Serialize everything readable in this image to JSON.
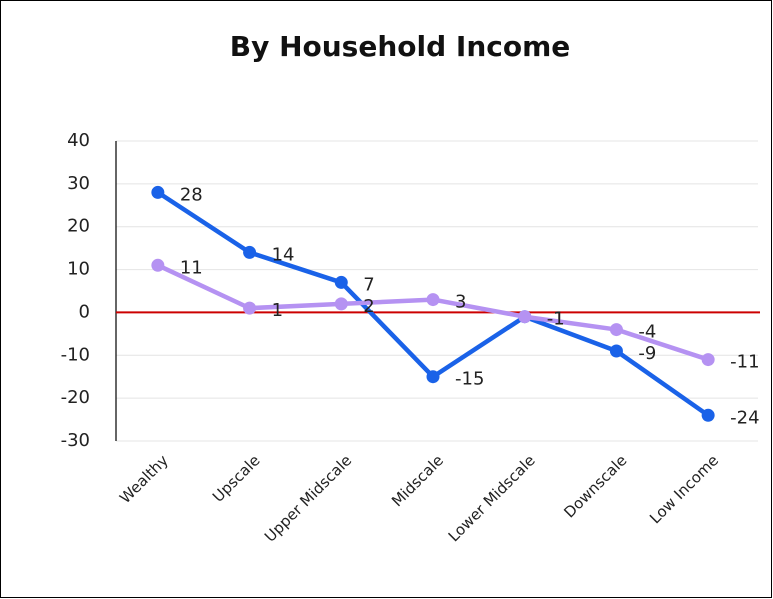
{
  "chart_data": {
    "type": "line",
    "title": "By Household Income",
    "categories": [
      "Wealthy",
      "Upscale",
      "Upper Midscale",
      "Midscale",
      "Lower Midscale",
      "Downscale",
      "Low Income"
    ],
    "series": [
      {
        "color": "#1a62e8",
        "values": [
          28,
          14,
          7,
          -15,
          -1,
          -9,
          -24
        ]
      },
      {
        "color": "#b592f2",
        "values": [
          11,
          1,
          2,
          3,
          -1,
          -4,
          -11
        ]
      }
    ],
    "ylim": [
      -30,
      40
    ],
    "yticks": [
      -30,
      -20,
      -10,
      0,
      10,
      20,
      30,
      40
    ],
    "grid": true,
    "data_labels": true
  }
}
